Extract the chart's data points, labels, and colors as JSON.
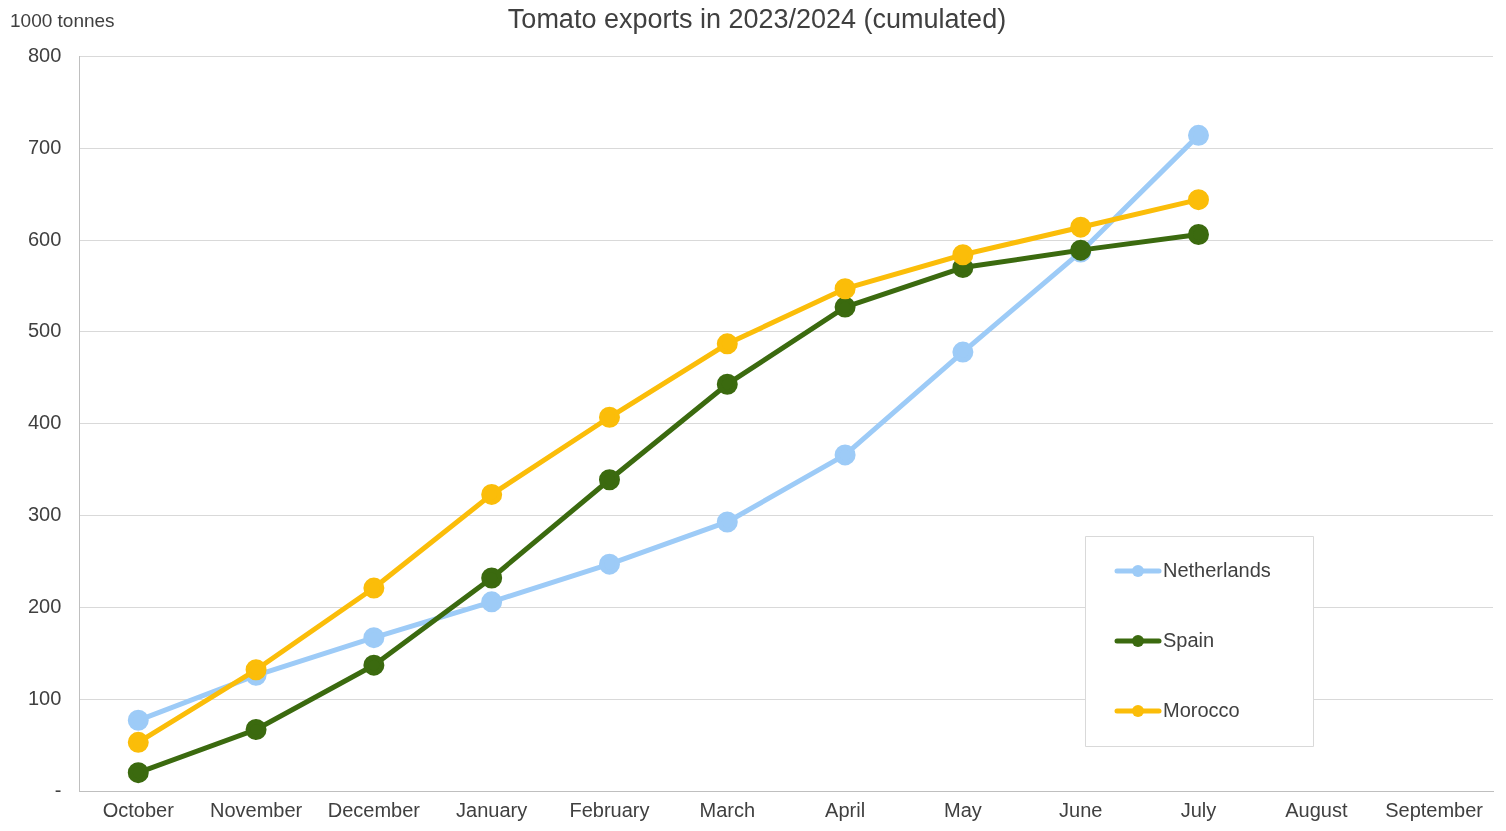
{
  "chart_data": {
    "type": "line",
    "title": "Tomato exports in 2023/2024 (cumulated)",
    "ylabel": "1000 tonnes",
    "categories": [
      "October",
      "November",
      "December",
      "January",
      "February",
      "March",
      "April",
      "May",
      "June",
      "July",
      "August",
      "September"
    ],
    "series": [
      {
        "name": "Netherlands",
        "color": "#9dcbf7",
        "values": [
          77,
          126,
          167,
          206,
          247,
          293,
          366,
          478,
          587,
          714,
          null,
          null
        ]
      },
      {
        "name": "Spain",
        "color": "#3b6a0f",
        "values": [
          20,
          67,
          137,
          232,
          339,
          443,
          527,
          570,
          589,
          606,
          null,
          null
        ]
      },
      {
        "name": "Morocco",
        "color": "#fbbd09",
        "values": [
          53,
          132,
          221,
          323,
          407,
          487,
          547,
          584,
          614,
          644,
          null,
          null
        ]
      }
    ],
    "ylim": [
      0,
      800
    ],
    "yticks": [
      {
        "value": 0,
        "label": "-"
      },
      100,
      200,
      300,
      400,
      500,
      600,
      700,
      800
    ],
    "grid": "y",
    "legend": "bottom right",
    "marker": "circle",
    "line_style": "solid"
  }
}
